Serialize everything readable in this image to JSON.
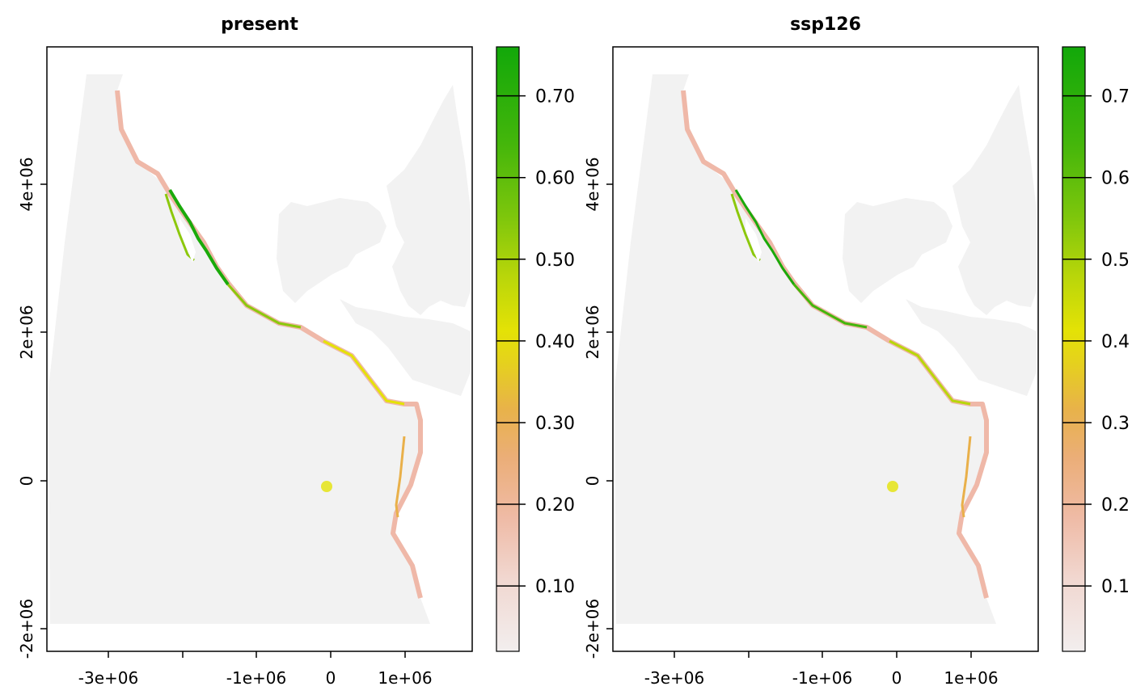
{
  "colors": {
    "land_background": "#f2f2f2",
    "low": "#f2e4e2",
    "mid_pink": "#efb39d",
    "orange": "#e9b04a",
    "yellow": "#e4e206",
    "lime": "#8cc80c",
    "green": "#1aaa0a"
  },
  "panels": [
    {
      "title": "present",
      "x_ticks": [
        "-3e+06",
        "",
        "-1e+06",
        "0",
        "1e+06"
      ],
      "y_ticks": [
        "-2e+06",
        "0",
        "2e+06",
        "4e+06"
      ],
      "colorbar": {
        "min": 0.02,
        "max": 0.76,
        "ticks": [
          {
            "value": 0.1,
            "label": "0.10"
          },
          {
            "value": 0.2,
            "label": "0.20"
          },
          {
            "value": 0.3,
            "label": "0.30"
          },
          {
            "value": 0.4,
            "label": "0.40"
          },
          {
            "value": 0.5,
            "label": "0.50"
          },
          {
            "value": 0.6,
            "label": "0.60"
          },
          {
            "value": 0.7,
            "label": "0.70"
          }
        ]
      }
    },
    {
      "title": "ssp126",
      "x_ticks": [
        "-3e+06",
        "",
        "-1e+06",
        "0",
        "1e+06"
      ],
      "y_ticks": [
        "-2e+06",
        "0",
        "2e+06",
        "4e+06"
      ],
      "colorbar": {
        "min": 0.02,
        "max": 0.76,
        "ticks": [
          {
            "value": 0.1,
            "label": "0.1"
          },
          {
            "value": 0.2,
            "label": "0.2"
          },
          {
            "value": 0.3,
            "label": "0.3"
          },
          {
            "value": 0.4,
            "label": "0.4"
          },
          {
            "value": 0.5,
            "label": "0.5"
          },
          {
            "value": 0.6,
            "label": "0.6"
          },
          {
            "value": 0.7,
            "label": "0.7"
          }
        ]
      }
    }
  ]
}
